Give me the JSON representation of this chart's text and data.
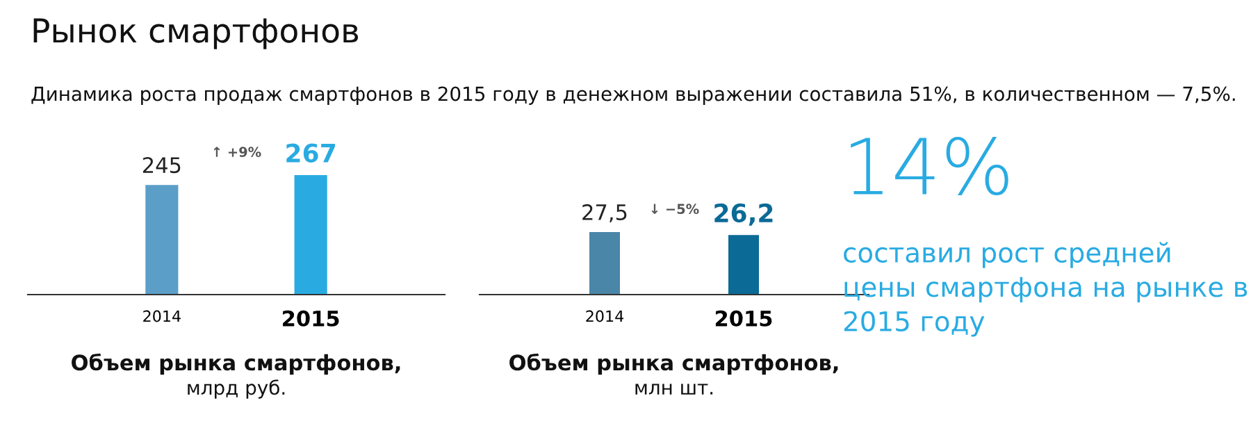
{
  "chart_data": [
    {
      "type": "bar",
      "title": "Рынок смартфонов",
      "subtitle": "Динамика роста продаж смартфонов в 2015 году в денежном выражении составила 51%, в количественном — 7,5%.",
      "xlabel": "Объем рынка смартфонов,\nмлрд руб.",
      "categories": [
        "2014",
        "2015"
      ],
      "values": [
        245,
        267
      ],
      "colors": [
        "#5b9fc8",
        "#29abe2"
      ],
      "value_labels": [
        "245",
        "267"
      ],
      "annotations": [
        "↑ +9%"
      ]
    },
    {
      "type": "bar",
      "xlabel": "Объем рынка смартфонов,\nмлн шт.",
      "categories": [
        "2014",
        "2015"
      ],
      "values": [
        27.5,
        26.2
      ],
      "colors": [
        "#4a86a8",
        "#0b6a96"
      ],
      "value_labels": [
        "27,5",
        "26,2"
      ],
      "annotations": [
        "↓ −5%"
      ]
    },
    {
      "type": "other",
      "title": "14%",
      "subtitle": "составил рост средней цены смартфона на рынке в 2015 году"
    }
  ]
}
